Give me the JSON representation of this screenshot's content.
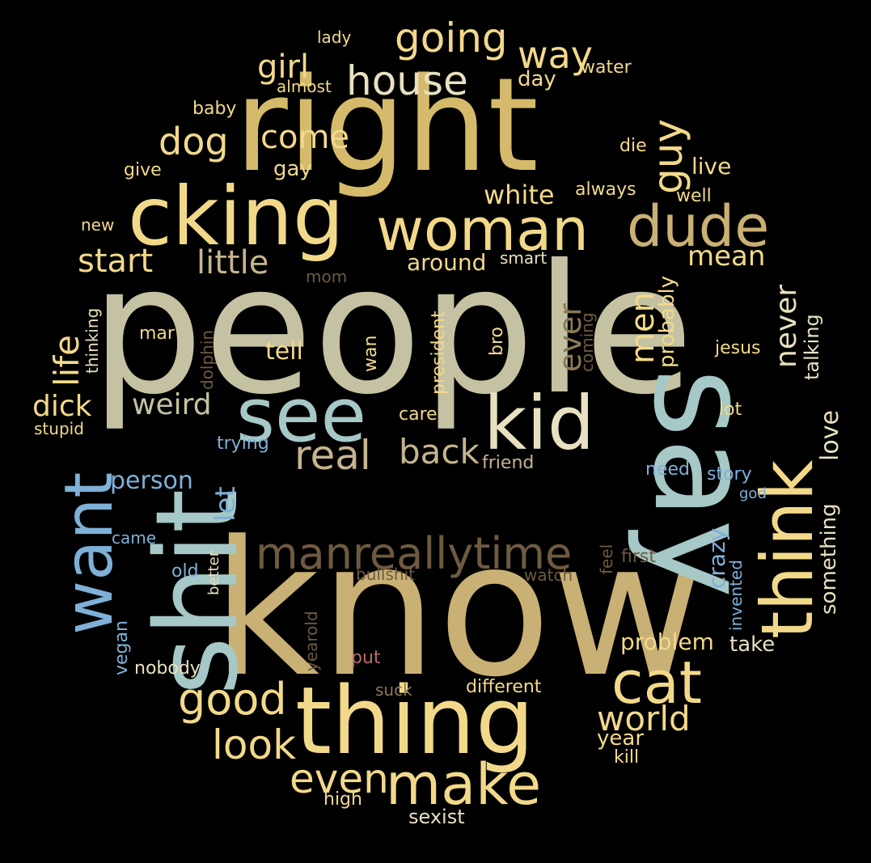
{
  "palette": {
    "background": "#000000",
    "gold": "#d4ba6a",
    "khaki": "#c9b074",
    "pale_gold": "#f2d98a",
    "sage": "#c4c2a2",
    "light_teal": "#a6c8c6",
    "sky_blue": "#7fb0d8",
    "tan": "#c6b48f",
    "brown": "#6e5a40",
    "dim_brown": "#8a7a55",
    "rose": "#b86b6b",
    "cream": "#e8e0c0"
  },
  "words": [
    "people",
    "know",
    "right",
    "say",
    "shit",
    "cking",
    "thing",
    "think",
    "woman",
    "kid",
    "see",
    "want",
    "dude",
    "cat",
    "make",
    "going",
    "house",
    "manreallytime",
    "look",
    "good",
    "world",
    "even",
    "real",
    "back",
    "little",
    "start",
    "come",
    "dog",
    "girl",
    "way",
    "guy",
    "white",
    "weird",
    "life",
    "dick",
    "ever",
    "men",
    "never",
    "mean",
    "let",
    "crazy",
    "person",
    "love",
    "something",
    "problem",
    "take",
    "tell",
    "talking",
    "probably",
    "around",
    "smart",
    "lady",
    "water",
    "day",
    "almost",
    "baby",
    "die",
    "give",
    "gay",
    "live",
    "always",
    "well",
    "new",
    "mom",
    "thinking",
    "mar",
    "dolphin",
    "wan",
    "president",
    "bro",
    "coming",
    "jesus",
    "care",
    "lot",
    "stupid",
    "trying",
    "friend",
    "need",
    "story",
    "god",
    "came",
    "better",
    "feel",
    "first",
    "invented",
    "old",
    "bullshit",
    "watch",
    "vegan",
    "yearold",
    "nobody",
    "put",
    "suck",
    "different",
    "year",
    "kill",
    "high",
    "sexist"
  ]
}
